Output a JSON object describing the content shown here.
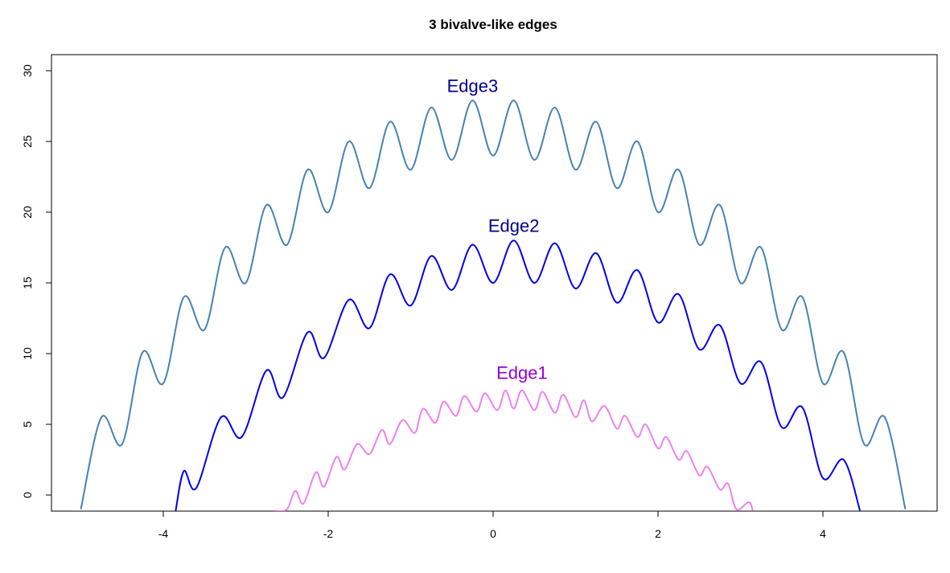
{
  "chart_data": {
    "type": "line",
    "title": "3 bivalve-like edges",
    "xlabel": "",
    "ylabel": "",
    "xlim": [
      -5.0,
      5.0
    ],
    "ylim": [
      -1.1,
      30.5
    ],
    "xticks": [
      -4,
      -2,
      0,
      2,
      4
    ],
    "xtick_labels": [
      "-4",
      "-2",
      "0",
      "2",
      "4"
    ],
    "yticks": [
      0,
      5,
      10,
      15,
      20,
      25,
      30
    ],
    "ytick_labels": [
      "0",
      "5",
      "10",
      "15",
      "20",
      "25",
      "30"
    ],
    "grid": false,
    "series": [
      {
        "name": "Edge1",
        "color": "#ee82ee",
        "label_color": "#9400d3",
        "points": [
          [
            -2.65,
            -1.1
          ],
          [
            -2.5,
            -1.0
          ],
          [
            -2.4,
            0.3
          ],
          [
            -2.3,
            -0.6
          ],
          [
            -2.15,
            1.6
          ],
          [
            -2.05,
            0.6
          ],
          [
            -1.9,
            2.7
          ],
          [
            -1.8,
            1.8
          ],
          [
            -1.65,
            3.6
          ],
          [
            -1.5,
            2.9
          ],
          [
            -1.35,
            4.6
          ],
          [
            -1.25,
            3.6
          ],
          [
            -1.1,
            5.3
          ],
          [
            -0.95,
            4.4
          ],
          [
            -0.85,
            6.1
          ],
          [
            -0.7,
            5.1
          ],
          [
            -0.6,
            6.6
          ],
          [
            -0.45,
            5.6
          ],
          [
            -0.35,
            7.0
          ],
          [
            -0.2,
            5.9
          ],
          [
            -0.1,
            7.2
          ],
          [
            0.05,
            6.0
          ],
          [
            0.15,
            7.4
          ],
          [
            0.25,
            6.1
          ],
          [
            0.35,
            7.4
          ],
          [
            0.5,
            6.0
          ],
          [
            0.6,
            7.3
          ],
          [
            0.75,
            5.8
          ],
          [
            0.85,
            7.1
          ],
          [
            1.0,
            5.5
          ],
          [
            1.1,
            6.7
          ],
          [
            1.2,
            5.2
          ],
          [
            1.35,
            6.3
          ],
          [
            1.5,
            4.7
          ],
          [
            1.6,
            5.6
          ],
          [
            1.75,
            4.1
          ],
          [
            1.85,
            5.0
          ],
          [
            2.0,
            3.3
          ],
          [
            2.1,
            4.1
          ],
          [
            2.25,
            2.5
          ],
          [
            2.35,
            3.1
          ],
          [
            2.5,
            1.4
          ],
          [
            2.6,
            2.0
          ],
          [
            2.75,
            0.4
          ],
          [
            2.85,
            0.8
          ],
          [
            2.95,
            -1.0
          ],
          [
            3.1,
            -0.5
          ],
          [
            3.15,
            -1.1
          ]
        ]
      },
      {
        "name": "Edge2",
        "color": "#0000ee",
        "label_color": "#00008b",
        "points": [
          [
            -3.85,
            -1.1
          ],
          [
            -3.75,
            1.7
          ],
          [
            -3.6,
            0.5
          ],
          [
            -3.3,
            5.5
          ],
          [
            -3.05,
            4.1
          ],
          [
            -2.75,
            8.8
          ],
          [
            -2.55,
            6.9
          ],
          [
            -2.25,
            11.5
          ],
          [
            -2.05,
            9.7
          ],
          [
            -1.75,
            13.8
          ],
          [
            -1.5,
            11.8
          ],
          [
            -1.25,
            15.6
          ],
          [
            -1.0,
            13.4
          ],
          [
            -0.75,
            16.9
          ],
          [
            -0.5,
            14.5
          ],
          [
            -0.25,
            17.7
          ],
          [
            0.0,
            15.0
          ],
          [
            0.25,
            18.0
          ],
          [
            0.5,
            15.0
          ],
          [
            0.75,
            17.8
          ],
          [
            1.0,
            14.6
          ],
          [
            1.25,
            17.1
          ],
          [
            1.5,
            13.6
          ],
          [
            1.75,
            15.9
          ],
          [
            2.0,
            12.2
          ],
          [
            2.25,
            14.2
          ],
          [
            2.5,
            10.3
          ],
          [
            2.75,
            12.0
          ],
          [
            3.0,
            7.9
          ],
          [
            3.25,
            9.4
          ],
          [
            3.5,
            4.8
          ],
          [
            3.75,
            6.2
          ],
          [
            4.0,
            1.2
          ],
          [
            4.25,
            2.5
          ],
          [
            4.45,
            -1.1
          ]
        ]
      },
      {
        "name": "Edge3",
        "color": "#4682b4",
        "label_color": "#00008b",
        "points": [
          [
            -5.0,
            -1.0
          ],
          [
            -4.75,
            5.5
          ],
          [
            -4.5,
            3.6
          ],
          [
            -4.25,
            10.1
          ],
          [
            -4.0,
            7.9
          ],
          [
            -3.75,
            14.0
          ],
          [
            -3.5,
            11.7
          ],
          [
            -3.25,
            17.5
          ],
          [
            -3.0,
            15.0
          ],
          [
            -2.75,
            20.5
          ],
          [
            -2.5,
            17.7
          ],
          [
            -2.25,
            23.0
          ],
          [
            -2.0,
            20.0
          ],
          [
            -1.75,
            25.0
          ],
          [
            -1.5,
            21.7
          ],
          [
            -1.25,
            26.4
          ],
          [
            -1.0,
            23.0
          ],
          [
            -0.75,
            27.4
          ],
          [
            -0.5,
            23.7
          ],
          [
            -0.25,
            27.9
          ],
          [
            0.0,
            24.0
          ],
          [
            0.25,
            27.9
          ],
          [
            0.5,
            23.7
          ],
          [
            0.75,
            27.4
          ],
          [
            1.0,
            23.0
          ],
          [
            1.25,
            26.4
          ],
          [
            1.5,
            21.7
          ],
          [
            1.75,
            25.0
          ],
          [
            2.0,
            20.0
          ],
          [
            2.25,
            23.0
          ],
          [
            2.5,
            17.7
          ],
          [
            2.75,
            20.5
          ],
          [
            3.0,
            15.0
          ],
          [
            3.25,
            17.5
          ],
          [
            3.5,
            11.7
          ],
          [
            3.75,
            14.0
          ],
          [
            4.0,
            7.9
          ],
          [
            4.25,
            10.1
          ],
          [
            4.5,
            3.6
          ],
          [
            4.75,
            5.5
          ],
          [
            5.0,
            -1.0
          ]
        ]
      }
    ],
    "annotations": [
      {
        "text": "Edge1",
        "x": 0.35,
        "y": 8.2,
        "color": "#9400d3"
      },
      {
        "text": "Edge2",
        "x": 0.25,
        "y": 18.6,
        "color": "#00008b"
      },
      {
        "text": "Edge3",
        "x": -0.25,
        "y": 28.5,
        "color": "#00008b"
      }
    ]
  }
}
